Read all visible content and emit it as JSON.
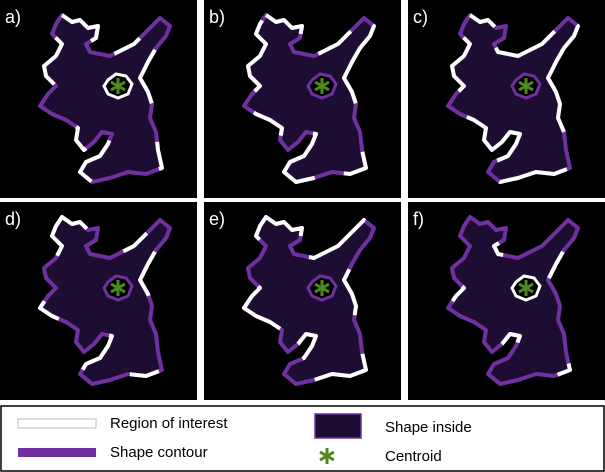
{
  "panels": [
    "a)",
    "b)",
    "c)",
    "d)",
    "e)",
    "f)"
  ],
  "legend": {
    "region": "Region of interest",
    "contour": "Shape contour",
    "inside": "Shape inside",
    "centroid": "Centroid"
  }
}
